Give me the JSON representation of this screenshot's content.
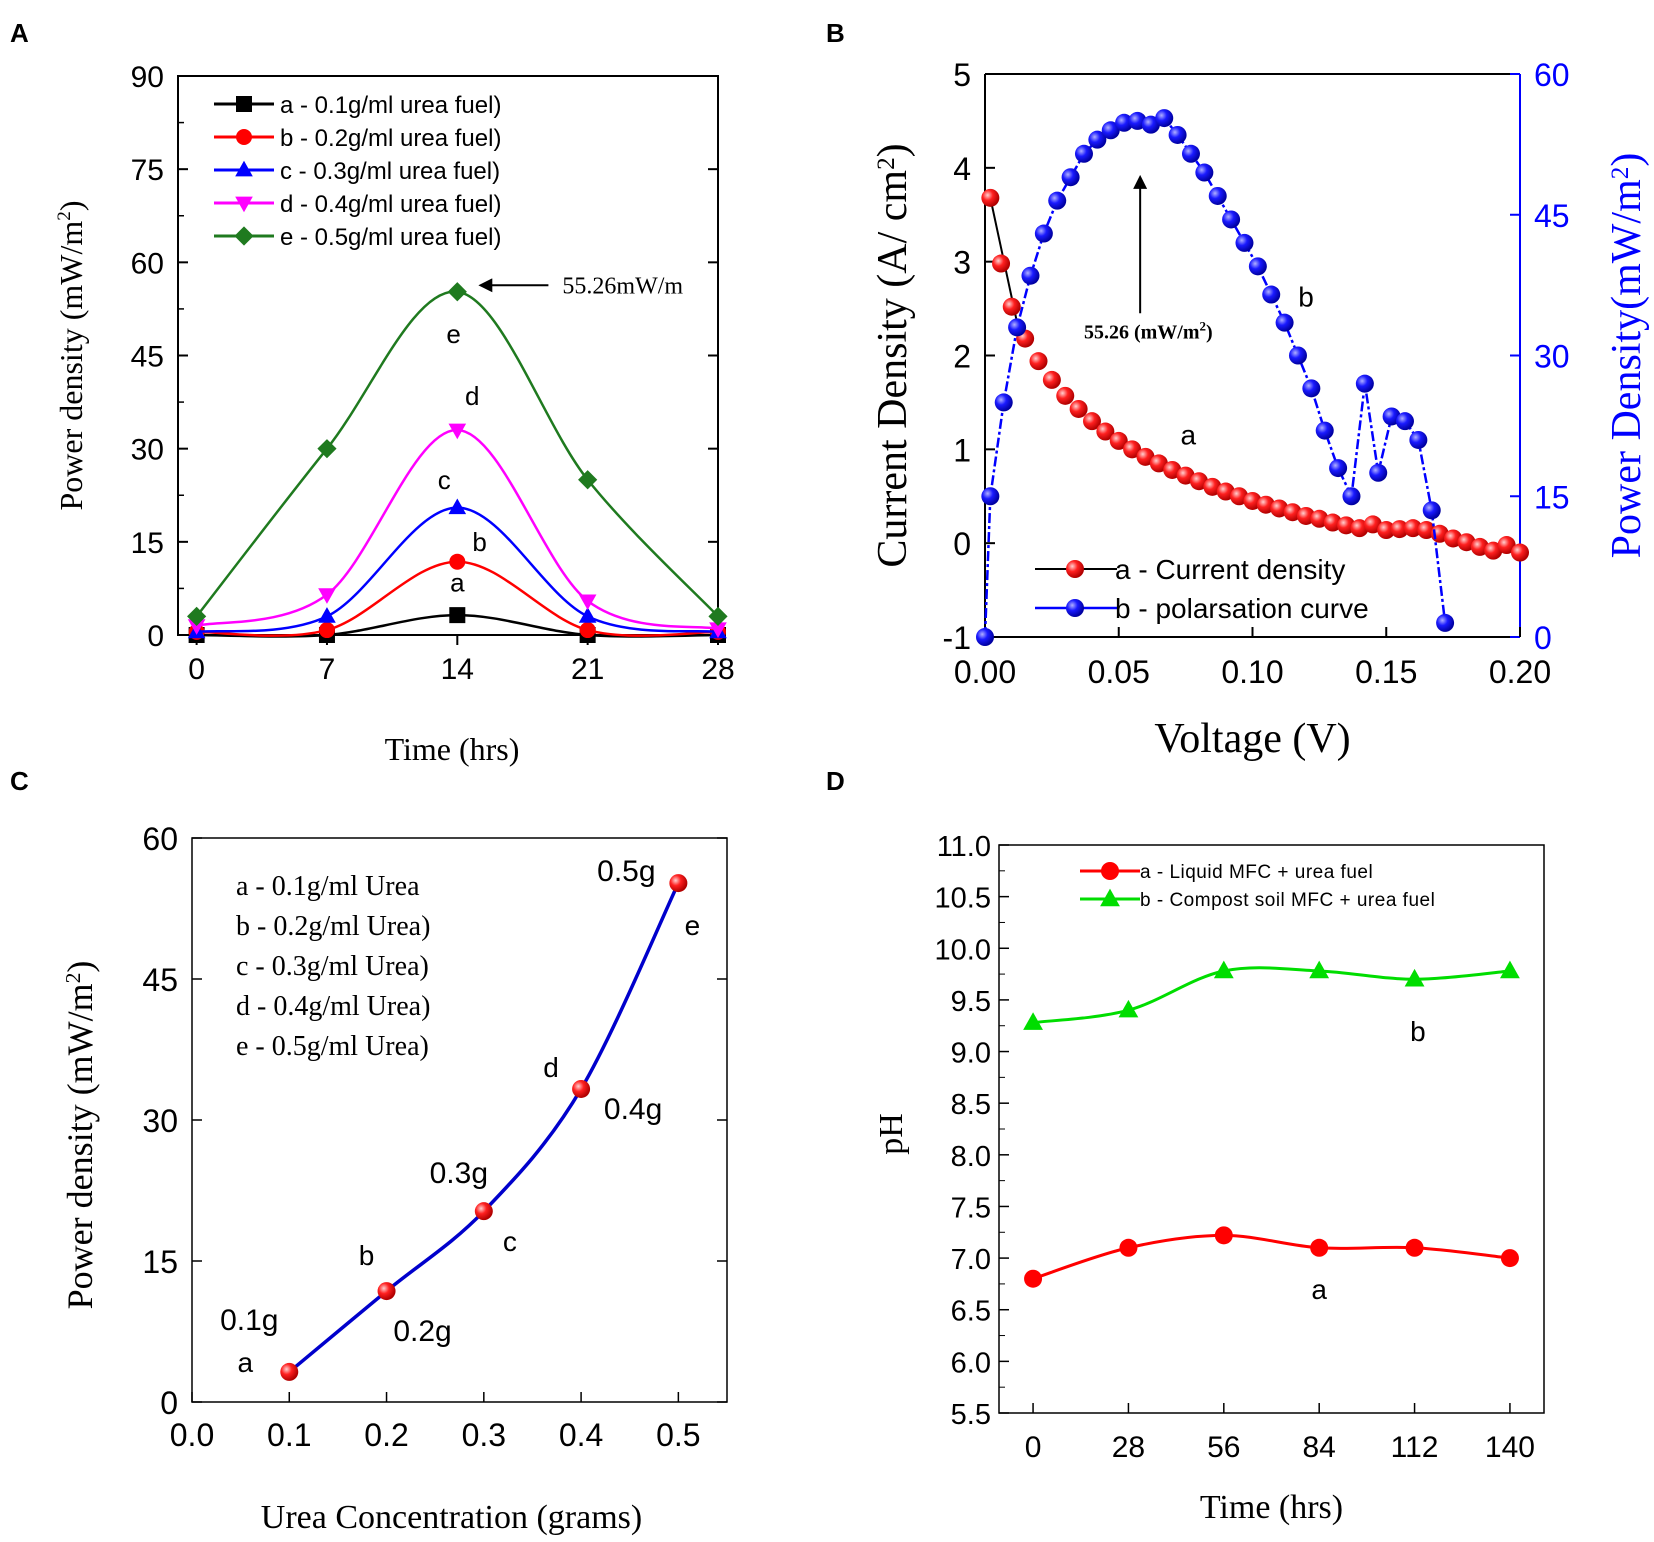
{
  "colors": {
    "black": "#000000",
    "red": "#ff0000",
    "blue": "#0000ff",
    "magenta": "#ff00ff",
    "green": "#1f7a1f",
    "light_green": "#00dd00",
    "navy": "#0000cc"
  },
  "chart_data": [
    {
      "panel": "A",
      "type": "line",
      "xlabel": "Time (hrs)",
      "ylabel": "Power density (mW/m²)",
      "ylabel_base": "Power density (mW/m",
      "ylabel_sup": "2",
      "ylabel_close": ")",
      "xlim": [
        -1,
        28
      ],
      "ylim": [
        0,
        90
      ],
      "xticks": [
        0,
        7,
        14,
        21,
        28
      ],
      "yticks": [
        0,
        15,
        30,
        45,
        60,
        75,
        90
      ],
      "x": [
        0,
        7,
        14,
        21,
        28
      ],
      "series": [
        {
          "key": "a",
          "name": "a - 0.1g/ml urea fuel)",
          "color": "#000000",
          "marker": "square",
          "values": [
            0,
            0,
            3.2,
            0,
            0
          ],
          "label_xy": [
            14,
            7
          ]
        },
        {
          "key": "b",
          "name": "b - 0.2g/ml urea fuel)",
          "color": "#ff0000",
          "marker": "circle",
          "values": [
            0.5,
            0.8,
            11.8,
            0.8,
            0.5
          ],
          "label_xy": [
            15.2,
            13.5
          ]
        },
        {
          "key": "c",
          "name": "c - 0.3g/ml urea fuel)",
          "color": "#0000ff",
          "marker": "triangle-up",
          "values": [
            0.5,
            3,
            20.5,
            3,
            0.5
          ],
          "label_xy": [
            13.3,
            23.5
          ]
        },
        {
          "key": "d",
          "name": "d - 0.4g/ml urea fuel)",
          "color": "#ff00ff",
          "marker": "triangle-down",
          "values": [
            1.5,
            6.5,
            33,
            5.5,
            1
          ],
          "label_xy": [
            14.8,
            37
          ]
        },
        {
          "key": "e",
          "name": "e - 0.5g/ml urea fuel)",
          "color": "#1f7a1f",
          "marker": "diamond",
          "values": [
            3,
            30,
            55.26,
            25,
            3
          ],
          "label_xy": [
            13.8,
            47
          ]
        }
      ],
      "annotation": {
        "text": "55.26mW/m",
        "x": 19,
        "y": 55.5
      }
    },
    {
      "panel": "B",
      "type": "scatter",
      "xlabel": "Voltage (V)",
      "ylabel_left": "Current Density (A/ cm²)",
      "ylabel_left_base": "Current Density (A/ cm",
      "ylabel_left_sup": "2",
      "ylabel_left_close": ")",
      "ylabel_right": "Power Density(mW/m²)",
      "ylabel_right_base": "Power Density(mW/m",
      "ylabel_right_sup": "2",
      "ylabel_right_close": ")",
      "xlim": [
        0,
        0.2
      ],
      "ylim_left": [
        -1,
        5
      ],
      "ylim_right": [
        0,
        60
      ],
      "xticks": [
        "0.00",
        "0.05",
        "0.10",
        "0.15",
        "0.20"
      ],
      "yticks_left": [
        -1,
        0,
        1,
        2,
        3,
        4,
        5
      ],
      "yticks_right": [
        0,
        15,
        30,
        45,
        60
      ],
      "series": [
        {
          "key": "a",
          "name": "a - Current density",
          "axis": "left",
          "color": "#ff0000",
          "x": [
            0.002,
            0.006,
            0.01,
            0.015,
            0.02,
            0.025,
            0.03,
            0.035,
            0.04,
            0.045,
            0.05,
            0.055,
            0.06,
            0.065,
            0.07,
            0.075,
            0.08,
            0.085,
            0.09,
            0.095,
            0.1,
            0.105,
            0.11,
            0.115,
            0.12,
            0.125,
            0.13,
            0.135,
            0.14,
            0.145,
            0.15,
            0.155,
            0.16,
            0.165,
            0.17,
            0.175,
            0.18,
            0.185,
            0.19,
            0.195,
            0.2
          ],
          "y": [
            3.68,
            2.98,
            2.52,
            2.18,
            1.94,
            1.74,
            1.57,
            1.43,
            1.3,
            1.19,
            1.09,
            1.0,
            0.92,
            0.85,
            0.78,
            0.72,
            0.66,
            0.6,
            0.55,
            0.5,
            0.45,
            0.41,
            0.37,
            0.33,
            0.29,
            0.26,
            0.22,
            0.19,
            0.16,
            0.2,
            0.14,
            0.15,
            0.16,
            0.14,
            0.1,
            0.05,
            0.01,
            -0.04,
            -0.08,
            -0.02,
            -0.1
          ],
          "label": "a",
          "label_xy": [
            0.076,
            1.05
          ]
        },
        {
          "key": "b",
          "name": "b - polarsation curve",
          "axis": "right",
          "color": "#0000ff",
          "x": [
            0.0,
            0.002,
            0.007,
            0.012,
            0.017,
            0.022,
            0.027,
            0.032,
            0.037,
            0.042,
            0.047,
            0.052,
            0.057,
            0.062,
            0.067,
            0.072,
            0.077,
            0.082,
            0.087,
            0.092,
            0.097,
            0.102,
            0.107,
            0.112,
            0.117,
            0.122,
            0.127,
            0.132,
            0.137,
            0.142,
            0.147,
            0.152,
            0.157,
            0.162,
            0.167,
            0.172
          ],
          "y": [
            0,
            15,
            25,
            33,
            38.5,
            43,
            46.5,
            49,
            51.5,
            53,
            54,
            54.8,
            55,
            54.6,
            55.3,
            53.5,
            51.5,
            49.5,
            47,
            44.5,
            42,
            39.5,
            36.5,
            33.5,
            30,
            26.5,
            22,
            18,
            15,
            27,
            17.5,
            23.5,
            23,
            21,
            13.5,
            1.5
          ],
          "label": "b",
          "label_xy": [
            0.12,
            2.52
          ]
        }
      ],
      "annotation": {
        "text": "55.26 (mW/m",
        "sup": "2",
        "close": ")",
        "arrow_x": 0.058,
        "arrow_y_from": 2.45,
        "arrow_y_to": 3.85,
        "text_x": 0.037,
        "text_y": 2.5
      }
    },
    {
      "panel": "C",
      "type": "scatter",
      "xlabel": "Urea Concentration (grams)",
      "ylabel": "Power density (mW/m²)",
      "ylabel_base": "Power density (mW/m",
      "ylabel_sup": "2",
      "ylabel_close": ")",
      "xlim": [
        0,
        0.55
      ],
      "ylim": [
        0,
        60
      ],
      "xticks": [
        "0.0",
        "0.1",
        "0.2",
        "0.3",
        "0.4",
        "0.5"
      ],
      "yticks": [
        0,
        15,
        30,
        45,
        60
      ],
      "x": [
        0.1,
        0.2,
        0.3,
        0.4,
        0.5
      ],
      "values": [
        3.2,
        11.8,
        20.3,
        33.3,
        55.2
      ],
      "letters": [
        "a",
        "b",
        "c",
        "d",
        "e"
      ],
      "mass_labels": [
        "0.1g",
        "0.2g",
        "0.3g",
        "0.4g",
        "0.5g"
      ],
      "legend": [
        "a - 0.1g/ml Urea",
        "b - 0.2g/ml Urea)",
        "c - 0.3g/ml Urea)",
        "d - 0.4g/ml Urea)",
        "e - 0.5g/ml Urea)"
      ]
    },
    {
      "panel": "D",
      "type": "line",
      "xlabel": "Time (hrs)",
      "ylabel": "pH",
      "xlim": [
        -10,
        150
      ],
      "ylim": [
        5.5,
        11.0
      ],
      "xticks": [
        0,
        28,
        56,
        84,
        112,
        140
      ],
      "yticks": [
        "5.5",
        "6.0",
        "6.5",
        "7.0",
        "7.5",
        "8.0",
        "8.5",
        "9.0",
        "9.5",
        "10.0",
        "10.5",
        "11.0"
      ],
      "x": [
        0,
        28,
        56,
        84,
        112,
        140
      ],
      "series": [
        {
          "key": "a",
          "name": "a - Liquid MFC + urea fuel",
          "color": "#ff0000",
          "marker": "circle",
          "values": [
            6.8,
            7.1,
            7.22,
            7.1,
            7.1,
            7.0
          ],
          "label": "a",
          "label_xy": [
            84,
            6.7
          ]
        },
        {
          "key": "b",
          "name": "b - Compost soil MFC + urea fuel",
          "color": "#00dd00",
          "marker": "triangle-up",
          "values": [
            9.28,
            9.4,
            9.78,
            9.78,
            9.7,
            9.78
          ],
          "label": "b",
          "label_xy": [
            113,
            9.2
          ]
        }
      ]
    }
  ],
  "panels": [
    "A",
    "B",
    "C",
    "D"
  ]
}
